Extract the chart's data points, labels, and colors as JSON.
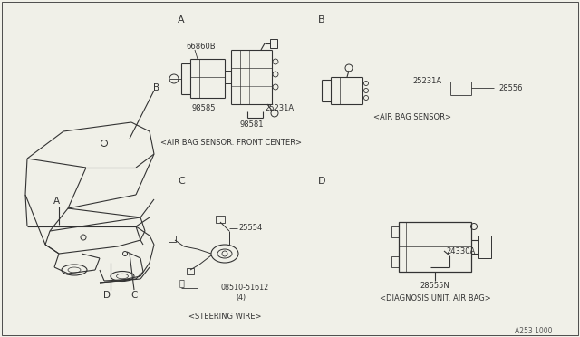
{
  "bg_color": "#f0f0e8",
  "line_color": "#333333",
  "text_color": "#333333",
  "caption_A": "<AIR BAG SENSOR. FRONT CENTER>",
  "caption_B": "<AIR BAG SENSOR>",
  "caption_C": "<STEERING WIRE>",
  "caption_D": "<DIAGNOSIS UNIT. AIR BAG>",
  "footer": "A253 1000"
}
